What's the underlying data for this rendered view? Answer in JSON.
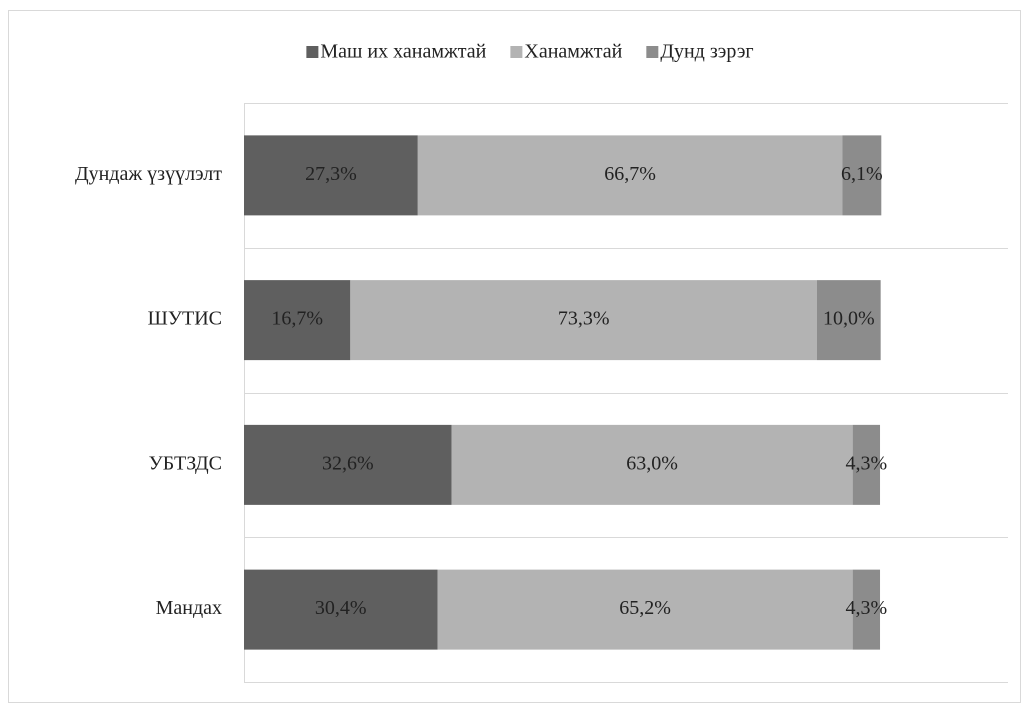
{
  "chart_data": {
    "type": "stacked-bar-horizontal",
    "categories": [
      "Дундаж үзүүлэлт",
      "ШУТИС",
      "УБТЗДС",
      "Мандах"
    ],
    "series": [
      {
        "name": "Маш их ханамжтай",
        "color": "#5f5f5f",
        "values": [
          27.3,
          16.7,
          32.6,
          30.4
        ],
        "value_labels": [
          "27,3%",
          "16,7%",
          "32,6%",
          "30,4%"
        ]
      },
      {
        "name": "Ханамжтай",
        "color": "#b3b3b3",
        "values": [
          66.7,
          73.3,
          63.0,
          65.2
        ],
        "value_labels": [
          "66,7%",
          "73,3%",
          "63,0%",
          "65,2%"
        ]
      },
      {
        "name": "Дунд зэрэг",
        "color": "#8c8c8c",
        "values": [
          6.1,
          10.0,
          4.3,
          4.3
        ],
        "value_labels": [
          "6,1%",
          "10,0%",
          "4,3%",
          "4,3%"
        ]
      }
    ],
    "xlim": [
      0,
      120
    ],
    "legend": "top"
  }
}
